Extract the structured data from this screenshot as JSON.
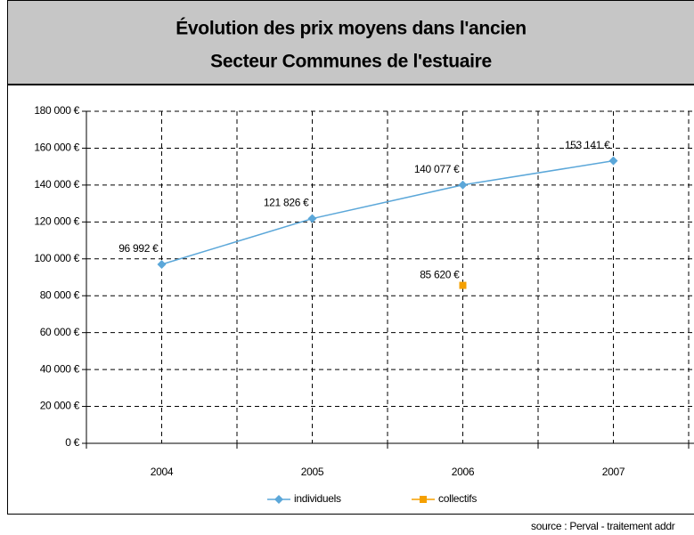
{
  "chart_data": {
    "type": "line",
    "title": [
      "Évolution des prix moyens dans l'ancien",
      "Secteur Communes de l'estuaire"
    ],
    "categories": [
      "2004",
      "2005",
      "2006",
      "2007"
    ],
    "series": [
      {
        "name": "individuels",
        "color": "#5ba7d9",
        "marker": "diamond",
        "values": [
          96992,
          121826,
          140077,
          153141
        ],
        "value_labels": [
          "96 992 €",
          "121 826 €",
          "140 077 €",
          "153 141 €"
        ]
      },
      {
        "name": "collectifs",
        "color": "#f5a000",
        "marker": "square",
        "values": [
          null,
          null,
          85620,
          null
        ],
        "value_labels": [
          null,
          null,
          "85 620 €",
          null
        ]
      }
    ],
    "ylim": [
      0,
      180000
    ],
    "yticks": [
      {
        "value": 0,
        "label": "0 €"
      },
      {
        "value": 20000,
        "label": "20 000 €"
      },
      {
        "value": 40000,
        "label": "40 000 €"
      },
      {
        "value": 60000,
        "label": "60 000 €"
      },
      {
        "value": 80000,
        "label": "80 000 €"
      },
      {
        "value": 100000,
        "label": "100 000 €"
      },
      {
        "value": 120000,
        "label": "120 000 €"
      },
      {
        "value": 140000,
        "label": "140 000 €"
      },
      {
        "value": 160000,
        "label": "160 000 €"
      },
      {
        "value": 180000,
        "label": "180 000 €"
      }
    ],
    "grid": true,
    "legend": "bottom",
    "source": "source : Perval - traitement addr"
  }
}
